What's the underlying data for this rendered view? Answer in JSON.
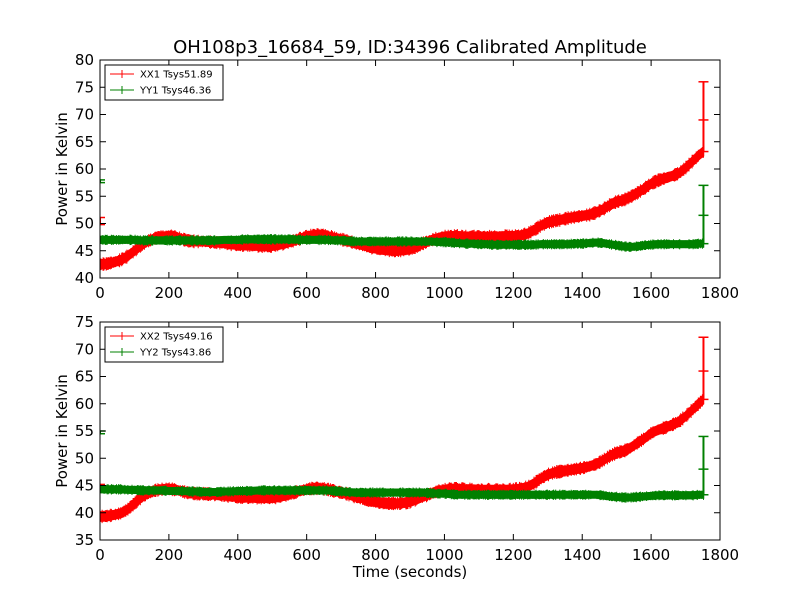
{
  "chart_data": [
    {
      "type": "line",
      "title": "OH108p3_16684_59, ID:34396 Calibrated Amplitude",
      "xlabel": "",
      "ylabel": "Power in Kelvin",
      "xlim": [
        0,
        1800
      ],
      "ylim": [
        40,
        80
      ],
      "xticks": [
        0,
        200,
        400,
        600,
        800,
        1000,
        1200,
        1400,
        1600,
        1800
      ],
      "yticks": [
        40,
        45,
        50,
        55,
        60,
        65,
        70,
        75,
        80
      ],
      "xtick_labels": [
        "0",
        "200",
        "400",
        "600",
        "800",
        "1000",
        "1200",
        "1400",
        "1600",
        "1800"
      ],
      "ytick_labels": [
        "40",
        "45",
        "50",
        "55",
        "60",
        "65",
        "70",
        "75",
        "80"
      ],
      "legend_position": "top-left",
      "grid": false,
      "series": [
        {
          "name": "XX1 Tsys51.89",
          "color": "#ff0000",
          "band": 0.8,
          "x": [
            0,
            20,
            40,
            60,
            80,
            100,
            120,
            140,
            160,
            180,
            200,
            220,
            240,
            260,
            280,
            300,
            320,
            340,
            360,
            380,
            400,
            420,
            440,
            460,
            480,
            500,
            520,
            540,
            560,
            580,
            600,
            620,
            640,
            660,
            680,
            700,
            720,
            740,
            760,
            780,
            800,
            820,
            840,
            860,
            880,
            900,
            920,
            940,
            960,
            980,
            1000,
            1020,
            1040,
            1060,
            1080,
            1100,
            1120,
            1140,
            1160,
            1180,
            1200,
            1220,
            1240,
            1260,
            1280,
            1300,
            1320,
            1340,
            1360,
            1380,
            1400,
            1420,
            1440,
            1460,
            1480,
            1500,
            1520,
            1540,
            1560,
            1580,
            1600,
            1620,
            1640,
            1660,
            1680,
            1700,
            1720,
            1740,
            1752
          ],
          "y": [
            42.5,
            42.6,
            42.9,
            43.3,
            44.0,
            45.0,
            46.0,
            46.8,
            47.3,
            47.6,
            47.7,
            47.5,
            47.1,
            46.8,
            46.7,
            46.7,
            46.6,
            46.5,
            46.4,
            46.2,
            46.1,
            46.0,
            46.0,
            45.9,
            45.8,
            45.9,
            46.1,
            46.4,
            46.8,
            47.2,
            47.6,
            47.9,
            47.9,
            47.7,
            47.4,
            47.1,
            46.8,
            46.4,
            46.1,
            45.7,
            45.4,
            45.2,
            45.1,
            45.0,
            45.1,
            45.3,
            45.8,
            46.4,
            46.9,
            47.3,
            47.6,
            47.7,
            47.7,
            47.6,
            47.6,
            47.6,
            47.6,
            47.6,
            47.6,
            47.7,
            47.7,
            47.8,
            48.1,
            48.8,
            49.6,
            50.2,
            50.5,
            50.7,
            51.0,
            51.2,
            51.4,
            51.6,
            52.0,
            52.6,
            53.4,
            54.0,
            54.3,
            54.9,
            55.6,
            56.4,
            57.3,
            57.9,
            58.3,
            58.7,
            59.2,
            60.2,
            61.4,
            62.6,
            63.2
          ],
          "spikes": [
            {
              "x": 0,
              "y": [
                49.8,
                51.1
              ]
            },
            {
              "x": 1752,
              "y": [
                63.2,
                69.0,
                76.0
              ]
            }
          ]
        },
        {
          "name": "YY1 Tsys46.36",
          "color": "#008000",
          "band": 0.6,
          "x": [
            0,
            20,
            40,
            60,
            80,
            100,
            120,
            140,
            160,
            180,
            200,
            220,
            240,
            260,
            280,
            300,
            320,
            340,
            360,
            380,
            400,
            420,
            440,
            460,
            480,
            500,
            520,
            540,
            560,
            580,
            600,
            620,
            640,
            660,
            680,
            700,
            720,
            740,
            760,
            780,
            800,
            820,
            840,
            860,
            880,
            900,
            920,
            940,
            960,
            980,
            1000,
            1020,
            1040,
            1060,
            1080,
            1100,
            1120,
            1140,
            1160,
            1180,
            1200,
            1220,
            1240,
            1260,
            1280,
            1300,
            1320,
            1340,
            1360,
            1380,
            1400,
            1420,
            1440,
            1460,
            1480,
            1500,
            1520,
            1540,
            1560,
            1580,
            1600,
            1620,
            1640,
            1660,
            1680,
            1700,
            1720,
            1740,
            1752
          ],
          "y": [
            47.0,
            47.0,
            47.0,
            47.0,
            47.0,
            47.0,
            46.9,
            46.9,
            46.9,
            46.9,
            46.9,
            46.9,
            46.9,
            46.9,
            46.9,
            46.9,
            46.9,
            46.9,
            47.0,
            47.0,
            47.0,
            47.1,
            47.1,
            47.1,
            47.1,
            47.1,
            47.1,
            47.1,
            47.1,
            47.0,
            47.0,
            47.0,
            47.0,
            47.0,
            46.9,
            46.9,
            46.8,
            46.7,
            46.7,
            46.7,
            46.7,
            46.7,
            46.7,
            46.7,
            46.7,
            46.7,
            46.7,
            46.7,
            46.7,
            46.6,
            46.6,
            46.5,
            46.4,
            46.3,
            46.3,
            46.2,
            46.2,
            46.1,
            46.1,
            46.1,
            46.1,
            46.1,
            46.1,
            46.1,
            46.2,
            46.2,
            46.2,
            46.2,
            46.2,
            46.3,
            46.3,
            46.4,
            46.5,
            46.4,
            46.2,
            46.0,
            45.8,
            45.7,
            45.8,
            46.0,
            46.1,
            46.2,
            46.2,
            46.2,
            46.2,
            46.2,
            46.2,
            46.3,
            46.3
          ],
          "spikes": [
            {
              "x": 0,
              "y": [
                57.5,
                58.0
              ]
            },
            {
              "x": 1752,
              "y": [
                46.3,
                51.5,
                57.0
              ]
            }
          ]
        }
      ]
    },
    {
      "type": "line",
      "title": "",
      "xlabel": "Time (seconds)",
      "ylabel": "Power in Kelvin",
      "xlim": [
        0,
        1800
      ],
      "ylim": [
        35,
        75
      ],
      "xticks": [
        0,
        200,
        400,
        600,
        800,
        1000,
        1200,
        1400,
        1600,
        1800
      ],
      "yticks": [
        35,
        40,
        45,
        50,
        55,
        60,
        65,
        70,
        75
      ],
      "xtick_labels": [
        "0",
        "200",
        "400",
        "600",
        "800",
        "1000",
        "1200",
        "1400",
        "1600",
        "1800"
      ],
      "ytick_labels": [
        "35",
        "40",
        "45",
        "50",
        "55",
        "60",
        "65",
        "70",
        "75"
      ],
      "legend_position": "top-left",
      "grid": false,
      "series": [
        {
          "name": "XX2 Tsys49.16",
          "color": "#ff0000",
          "band": 0.8,
          "x": [
            0,
            20,
            40,
            60,
            80,
            100,
            120,
            140,
            160,
            180,
            200,
            220,
            240,
            260,
            280,
            300,
            320,
            340,
            360,
            380,
            400,
            420,
            440,
            460,
            480,
            500,
            520,
            540,
            560,
            580,
            600,
            620,
            640,
            660,
            680,
            700,
            720,
            740,
            760,
            780,
            800,
            820,
            840,
            860,
            880,
            900,
            920,
            940,
            960,
            980,
            1000,
            1020,
            1040,
            1060,
            1080,
            1100,
            1120,
            1140,
            1160,
            1180,
            1200,
            1220,
            1240,
            1260,
            1280,
            1300,
            1320,
            1340,
            1360,
            1380,
            1400,
            1420,
            1440,
            1460,
            1480,
            1500,
            1520,
            1540,
            1560,
            1580,
            1600,
            1620,
            1640,
            1660,
            1680,
            1700,
            1720,
            1740,
            1752
          ],
          "y": [
            39.3,
            39.4,
            39.6,
            39.9,
            40.6,
            41.7,
            42.8,
            43.6,
            44.1,
            44.3,
            44.4,
            44.2,
            43.9,
            43.6,
            43.5,
            43.5,
            43.4,
            43.3,
            43.2,
            43.0,
            42.9,
            42.8,
            42.8,
            42.7,
            42.7,
            42.7,
            42.9,
            43.2,
            43.6,
            44.0,
            44.3,
            44.5,
            44.5,
            44.3,
            44.0,
            43.7,
            43.4,
            43.0,
            42.7,
            42.3,
            42.0,
            41.8,
            41.7,
            41.7,
            41.8,
            42.0,
            42.5,
            43.0,
            43.5,
            43.9,
            44.2,
            44.4,
            44.4,
            44.3,
            44.3,
            44.2,
            44.2,
            44.2,
            44.2,
            44.2,
            44.3,
            44.4,
            44.7,
            45.4,
            46.3,
            47.0,
            47.4,
            47.6,
            47.8,
            48.0,
            48.2,
            48.5,
            48.9,
            49.6,
            50.4,
            51.0,
            51.3,
            51.9,
            52.8,
            53.6,
            54.6,
            55.2,
            55.6,
            56.1,
            56.7,
            57.7,
            58.9,
            60.1,
            60.8
          ],
          "spikes": [
            {
              "x": 0,
              "y": [
                44.8,
                45.2
              ]
            },
            {
              "x": 1752,
              "y": [
                60.8,
                66.0,
                72.2
              ]
            }
          ]
        },
        {
          "name": "YY2 Tsys43.86",
          "color": "#008000",
          "band": 0.6,
          "x": [
            0,
            20,
            40,
            60,
            80,
            100,
            120,
            140,
            160,
            180,
            200,
            220,
            240,
            260,
            280,
            300,
            320,
            340,
            360,
            380,
            400,
            420,
            440,
            460,
            480,
            500,
            520,
            540,
            560,
            580,
            600,
            620,
            640,
            660,
            680,
            700,
            720,
            740,
            760,
            780,
            800,
            820,
            840,
            860,
            880,
            900,
            920,
            940,
            960,
            980,
            1000,
            1020,
            1040,
            1060,
            1080,
            1100,
            1120,
            1140,
            1160,
            1180,
            1200,
            1220,
            1240,
            1260,
            1280,
            1300,
            1320,
            1340,
            1360,
            1380,
            1400,
            1420,
            1440,
            1460,
            1480,
            1500,
            1520,
            1540,
            1560,
            1580,
            1600,
            1620,
            1640,
            1660,
            1680,
            1700,
            1720,
            1740,
            1752
          ],
          "y": [
            44.3,
            44.3,
            44.3,
            44.3,
            44.2,
            44.2,
            44.1,
            44.1,
            44.1,
            44.1,
            44.0,
            44.0,
            44.0,
            43.9,
            43.9,
            43.8,
            43.8,
            43.8,
            43.9,
            43.9,
            44.0,
            44.0,
            44.0,
            44.1,
            44.1,
            44.1,
            44.1,
            44.1,
            44.1,
            44.1,
            44.1,
            44.1,
            44.1,
            44.1,
            44.0,
            43.9,
            43.8,
            43.7,
            43.7,
            43.7,
            43.7,
            43.7,
            43.7,
            43.7,
            43.7,
            43.7,
            43.7,
            43.7,
            43.6,
            43.5,
            43.5,
            43.4,
            43.3,
            43.3,
            43.3,
            43.3,
            43.3,
            43.3,
            43.3,
            43.3,
            43.3,
            43.3,
            43.3,
            43.3,
            43.3,
            43.3,
            43.3,
            43.3,
            43.3,
            43.3,
            43.3,
            43.3,
            43.3,
            43.2,
            43.0,
            42.9,
            42.8,
            42.8,
            42.9,
            43.0,
            43.1,
            43.2,
            43.2,
            43.2,
            43.2,
            43.2,
            43.2,
            43.3,
            43.3
          ],
          "spikes": [
            {
              "x": 0,
              "y": [
                54.5,
                55.0
              ]
            },
            {
              "x": 1752,
              "y": [
                43.3,
                48.0,
                54.0
              ]
            }
          ]
        }
      ]
    }
  ]
}
